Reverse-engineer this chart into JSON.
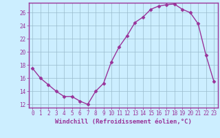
{
  "x": [
    0,
    1,
    2,
    3,
    4,
    5,
    6,
    7,
    8,
    9,
    10,
    11,
    12,
    13,
    14,
    15,
    16,
    17,
    18,
    19,
    20,
    21,
    22,
    23
  ],
  "y": [
    17.5,
    16.0,
    15.0,
    14.0,
    13.2,
    13.2,
    12.5,
    12.0,
    14.0,
    15.2,
    18.5,
    20.8,
    22.5,
    24.5,
    25.3,
    26.5,
    27.0,
    27.2,
    27.3,
    26.5,
    26.0,
    24.3,
    19.5,
    15.5
  ],
  "line_color": "#993399",
  "marker": "D",
  "marker_size": 2.5,
  "bg_color": "#cceeff",
  "grid_color": "#99bbcc",
  "xlabel": "Windchill (Refroidissement éolien,°C)",
  "ylabel": "",
  "xlim": [
    -0.5,
    23.5
  ],
  "ylim": [
    11.5,
    27.5
  ],
  "yticks": [
    12,
    14,
    16,
    18,
    20,
    22,
    24,
    26
  ],
  "xticks": [
    0,
    1,
    2,
    3,
    4,
    5,
    6,
    7,
    8,
    9,
    10,
    11,
    12,
    13,
    14,
    15,
    16,
    17,
    18,
    19,
    20,
    21,
    22,
    23
  ],
  "spine_color": "#993399",
  "axis_color": "#993399",
  "font_family": "monospace",
  "xlabel_fontsize": 6.5,
  "tick_fontsize": 5.5,
  "linewidth": 1.0
}
